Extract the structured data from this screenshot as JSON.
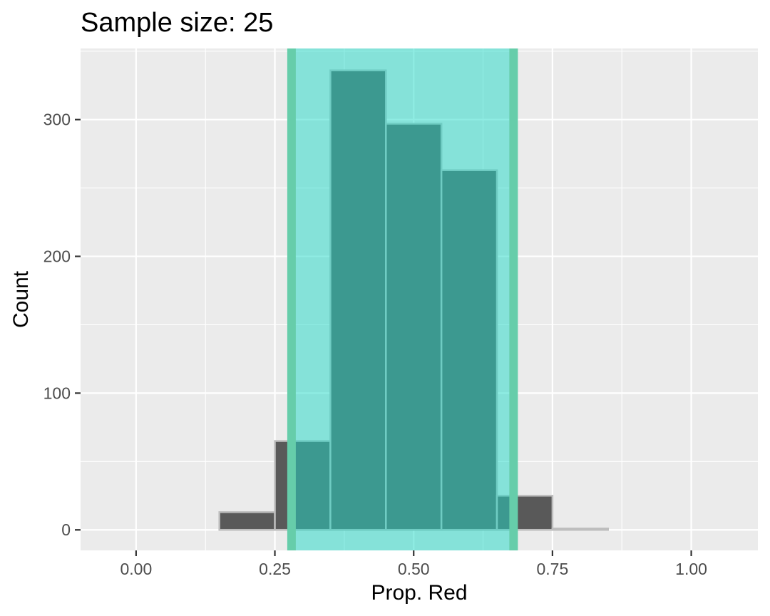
{
  "chart_data": {
    "type": "bar",
    "title": "Sample size: 25",
    "xlabel": "Prop. Red",
    "ylabel": "Count",
    "xlim": [
      -0.1,
      1.12
    ],
    "ylim": [
      -15,
      352
    ],
    "x_ticks": [
      {
        "value": 0.0,
        "label": "0.00"
      },
      {
        "value": 0.25,
        "label": "0.25"
      },
      {
        "value": 0.5,
        "label": "0.50"
      },
      {
        "value": 0.75,
        "label": "0.75"
      },
      {
        "value": 1.0,
        "label": "1.00"
      }
    ],
    "y_ticks": [
      {
        "value": 0,
        "label": "0"
      },
      {
        "value": 100,
        "label": "100"
      },
      {
        "value": 200,
        "label": "200"
      },
      {
        "value": 300,
        "label": "300"
      }
    ],
    "bin_width": 0.1,
    "bins": [
      {
        "center": 0.1,
        "count": 0
      },
      {
        "center": 0.2,
        "count": 13
      },
      {
        "center": 0.3,
        "count": 65
      },
      {
        "center": 0.4,
        "count": 336
      },
      {
        "center": 0.5,
        "count": 297
      },
      {
        "center": 0.6,
        "count": 263
      },
      {
        "center": 0.7,
        "count": 25
      },
      {
        "center": 0.8,
        "count": 1
      },
      {
        "center": 0.9,
        "count": 0
      }
    ],
    "interval": {
      "lower": 0.28,
      "upper": 0.68
    },
    "grid": true,
    "colors": {
      "panel": "#ebebeb",
      "grid": "#ffffff",
      "bar_fill": "#595959",
      "bar_outline": "#bebebe",
      "interval_fill": "#1fd9c7",
      "interval_line": "#66cdaa"
    }
  }
}
